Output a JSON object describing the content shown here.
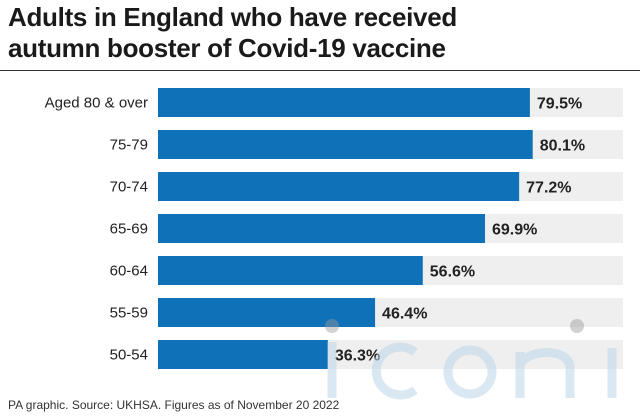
{
  "header": {
    "title_line1": "Adults in England who have received",
    "title_line2": "autumn booster of Covid-19 vaccine"
  },
  "chart_data": {
    "type": "bar",
    "orientation": "horizontal",
    "categories": [
      "Aged 80 & over",
      "75-79",
      "70-74",
      "65-69",
      "60-64",
      "55-59",
      "50-54"
    ],
    "values": [
      79.5,
      80.1,
      77.2,
      69.9,
      56.6,
      46.4,
      36.3
    ],
    "value_labels": [
      "79.5%",
      "80.1%",
      "77.2%",
      "69.9%",
      "56.6%",
      "46.4%",
      "36.3%"
    ],
    "xlim": [
      0,
      100
    ],
    "grid": false,
    "legend": "none",
    "bar_color": "#0f72b8",
    "track_color": "#efefef"
  },
  "footer": {
    "source": "PA graphic. Source: UKHSA. Figures as of November 20 2022"
  }
}
